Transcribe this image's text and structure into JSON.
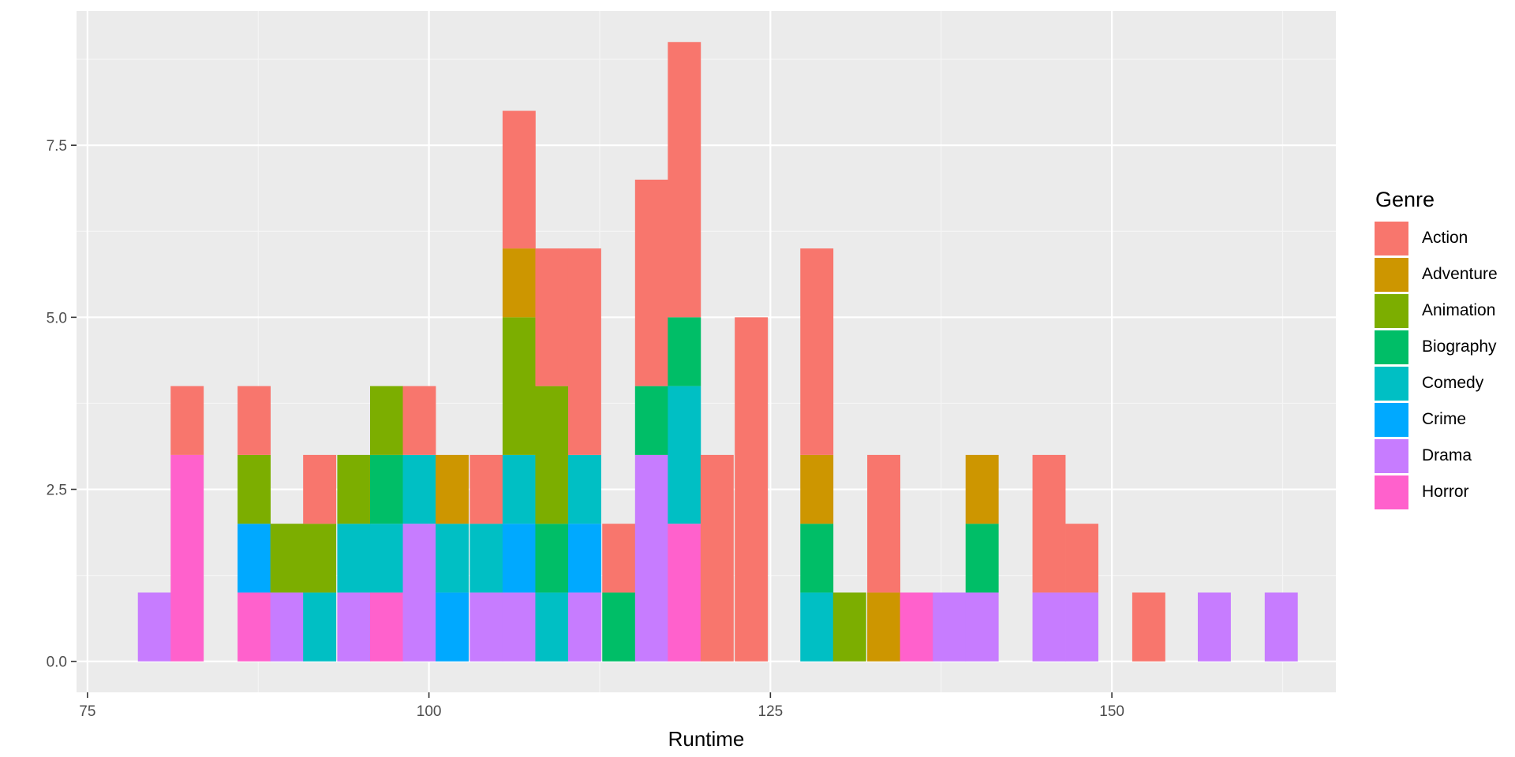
{
  "chart_data": {
    "type": "bar",
    "stacked": true,
    "histogram": true,
    "x_axis": {
      "label": "Runtime",
      "ticks": [
        75,
        100,
        125,
        150
      ],
      "lim": [
        74.2,
        166.4
      ]
    },
    "y_axis": {
      "label": "",
      "ticks": [
        "0.0",
        "2.5",
        "5.0",
        "7.5"
      ],
      "lim": [
        -0.45,
        9.45
      ]
    },
    "legend": {
      "title": "Genre",
      "position": "right"
    },
    "grid": true,
    "series": [
      {
        "name": "Action",
        "color": "#F8766D"
      },
      {
        "name": "Adventure",
        "color": "#CD9600"
      },
      {
        "name": "Animation",
        "color": "#7CAE00"
      },
      {
        "name": "Biography",
        "color": "#00BE67"
      },
      {
        "name": "Comedy",
        "color": "#00BFC4"
      },
      {
        "name": "Crime",
        "color": "#00A9FF"
      },
      {
        "name": "Drama",
        "color": "#C77CFF"
      },
      {
        "name": "Horror",
        "color": "#FF61CC"
      }
    ],
    "bins": [
      {
        "x": 79.9,
        "counts": {
          "Drama": 1
        }
      },
      {
        "x": 82.3,
        "counts": {
          "Horror": 3,
          "Action": 1
        }
      },
      {
        "x": 87.2,
        "counts": {
          "Horror": 1,
          "Crime": 1,
          "Animation": 1,
          "Action": 1
        }
      },
      {
        "x": 89.6,
        "counts": {
          "Drama": 1,
          "Animation": 1
        }
      },
      {
        "x": 92.0,
        "counts": {
          "Comedy": 1,
          "Animation": 1,
          "Action": 1
        }
      },
      {
        "x": 94.5,
        "counts": {
          "Drama": 1,
          "Comedy": 1,
          "Animation": 1
        }
      },
      {
        "x": 96.9,
        "counts": {
          "Horror": 1,
          "Comedy": 1,
          "Biography": 1,
          "Animation": 1
        }
      },
      {
        "x": 99.3,
        "counts": {
          "Drama": 2,
          "Comedy": 1,
          "Action": 1
        }
      },
      {
        "x": 101.7,
        "counts": {
          "Crime": 1,
          "Comedy": 1,
          "Adventure": 1
        }
      },
      {
        "x": 104.2,
        "counts": {
          "Drama": 1,
          "Comedy": 1,
          "Action": 1
        }
      },
      {
        "x": 106.6,
        "counts": {
          "Drama": 1,
          "Crime": 1,
          "Comedy": 1,
          "Animation": 2,
          "Adventure": 1,
          "Action": 2
        }
      },
      {
        "x": 109.0,
        "counts": {
          "Comedy": 1,
          "Biography": 1,
          "Animation": 2,
          "Action": 2
        }
      },
      {
        "x": 111.4,
        "counts": {
          "Drama": 1,
          "Crime": 1,
          "Comedy": 1,
          "Action": 3
        }
      },
      {
        "x": 113.9,
        "counts": {
          "Biography": 1,
          "Action": 1
        }
      },
      {
        "x": 116.3,
        "counts": {
          "Drama": 3,
          "Biography": 1,
          "Action": 3
        }
      },
      {
        "x": 118.7,
        "counts": {
          "Horror": 2,
          "Comedy": 2,
          "Biography": 1,
          "Action": 4
        }
      },
      {
        "x": 121.1,
        "counts": {
          "Action": 3
        }
      },
      {
        "x": 123.6,
        "counts": {
          "Action": 5
        }
      },
      {
        "x": 128.4,
        "counts": {
          "Comedy": 1,
          "Biography": 1,
          "Adventure": 1,
          "Action": 3
        }
      },
      {
        "x": 130.8,
        "counts": {
          "Animation": 1
        }
      },
      {
        "x": 133.3,
        "counts": {
          "Adventure": 1,
          "Action": 2
        }
      },
      {
        "x": 135.7,
        "counts": {
          "Horror": 1
        }
      },
      {
        "x": 138.1,
        "counts": {
          "Drama": 1
        }
      },
      {
        "x": 140.5,
        "counts": {
          "Drama": 1,
          "Biography": 1,
          "Adventure": 1
        }
      },
      {
        "x": 145.4,
        "counts": {
          "Drama": 1,
          "Action": 2
        }
      },
      {
        "x": 147.8,
        "counts": {
          "Drama": 1,
          "Action": 1
        }
      },
      {
        "x": 152.7,
        "counts": {
          "Action": 1
        }
      },
      {
        "x": 157.5,
        "counts": {
          "Drama": 1
        }
      },
      {
        "x": 162.4,
        "counts": {
          "Drama": 1
        }
      }
    ],
    "stack_order": [
      "Drama",
      "Horror",
      "Crime",
      "Comedy",
      "Biography",
      "Animation",
      "Adventure",
      "Action"
    ]
  }
}
